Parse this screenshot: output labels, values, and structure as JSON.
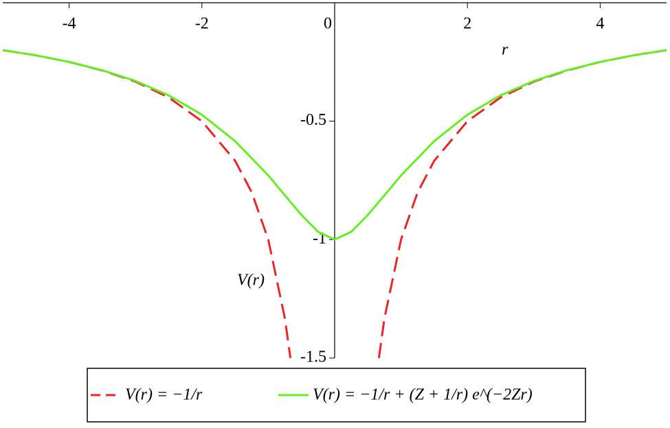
{
  "chart_data": {
    "type": "line",
    "x_label": "r",
    "y_label": "V(r)",
    "xlim": [
      -5,
      5
    ],
    "ylim": [
      -1.5,
      0
    ],
    "xticks": [
      -4,
      -2,
      0,
      2,
      4
    ],
    "yticks": [
      -0.5,
      -1,
      -1.5
    ],
    "legend": "bottom",
    "series": [
      {
        "name": "V(r) = −1/r",
        "color": "#e8262a",
        "dash": true,
        "x": [
          -5,
          -4.5,
          -4,
          -3.5,
          -3,
          -2.5,
          -2,
          -1.5,
          -1.25,
          -1,
          -0.75,
          -0.667,
          null,
          0.667,
          0.75,
          1,
          1.25,
          1.5,
          2,
          2.5,
          3,
          3.5,
          4,
          4.5,
          5
        ],
        "values": [
          -0.2,
          -0.222,
          -0.25,
          -0.286,
          -0.333,
          -0.4,
          -0.5,
          -0.667,
          -0.8,
          -1,
          -1.333,
          -1.5,
          null,
          -1.5,
          -1.333,
          -1,
          -0.8,
          -0.667,
          -0.5,
          -0.4,
          -0.333,
          -0.286,
          -0.25,
          -0.222,
          -0.2
        ]
      },
      {
        "name": "V(r) = −1/r + (Z + 1/r) e^(−2Zr)",
        "color": "#66ee22",
        "dash": false,
        "x": [
          -5,
          -4.5,
          -4,
          -3.5,
          -3,
          -2.5,
          -2,
          -1.5,
          -1,
          -0.75,
          -0.5,
          -0.25,
          0,
          0.25,
          0.5,
          0.75,
          1,
          1.5,
          2,
          2.5,
          3,
          3.5,
          4,
          4.5,
          5
        ],
        "values": [
          -0.2,
          -0.222,
          -0.25,
          -0.285,
          -0.33,
          -0.391,
          -0.473,
          -0.584,
          -0.729,
          -0.813,
          -0.896,
          -0.967,
          -1,
          -0.967,
          -0.896,
          -0.813,
          -0.729,
          -0.584,
          -0.473,
          -0.391,
          -0.33,
          -0.285,
          -0.25,
          -0.222,
          -0.2
        ]
      }
    ]
  }
}
